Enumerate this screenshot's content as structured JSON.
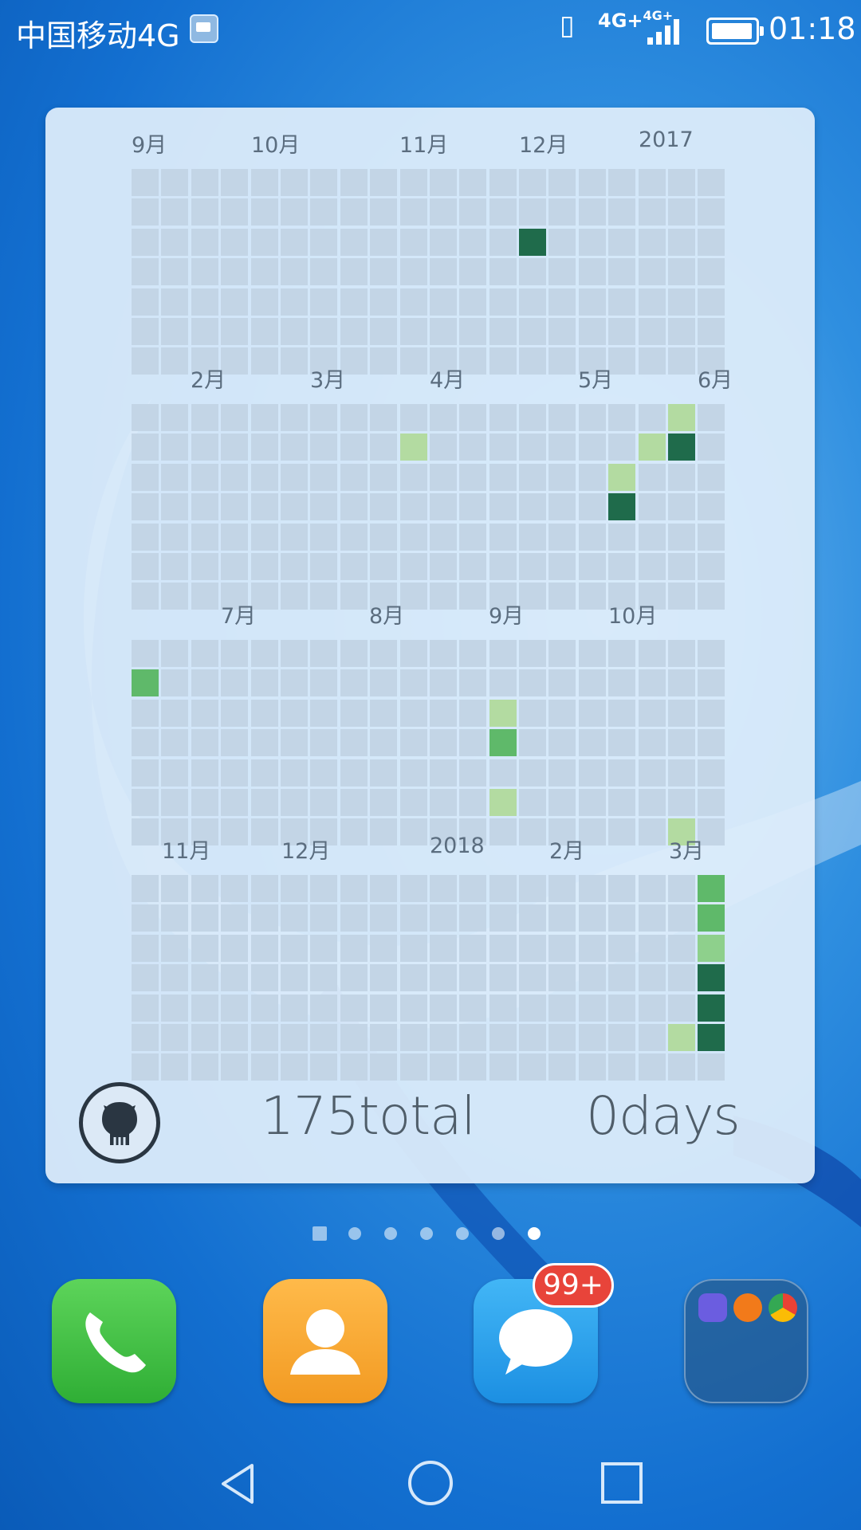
{
  "status_bar": {
    "carrier": "中国移动4G",
    "network": "4G+",
    "network_secondary": "4G+",
    "time": "01:18"
  },
  "widget": {
    "sections": [
      {
        "months": [
          "9月",
          "10月",
          "11月",
          "12月",
          "2017"
        ]
      },
      {
        "months": [
          "2月",
          "3月",
          "4月",
          "5月",
          "6月"
        ]
      },
      {
        "months": [
          "7月",
          "8月",
          "9月",
          "10月"
        ]
      },
      {
        "months": [
          "11月",
          "12月",
          "2018",
          "2月",
          "3月"
        ]
      }
    ],
    "total_label": "175total",
    "streak_label": "0days"
  },
  "home": {
    "page_count": 7,
    "active_page": 6,
    "badge": "99+"
  },
  "icons": {
    "phone": "phone-icon",
    "contacts": "contacts-icon",
    "messages": "messages-icon",
    "folder": "folder-icon",
    "github": "github-octocat-icon",
    "back": "back-icon",
    "home": "home-icon",
    "recents": "recents-icon"
  },
  "colors": {
    "level1": "#b3dba1",
    "level2": "#8ed08c",
    "level3": "#5fb96a",
    "level4": "#1f6b4b",
    "badge": "#e8443a"
  }
}
